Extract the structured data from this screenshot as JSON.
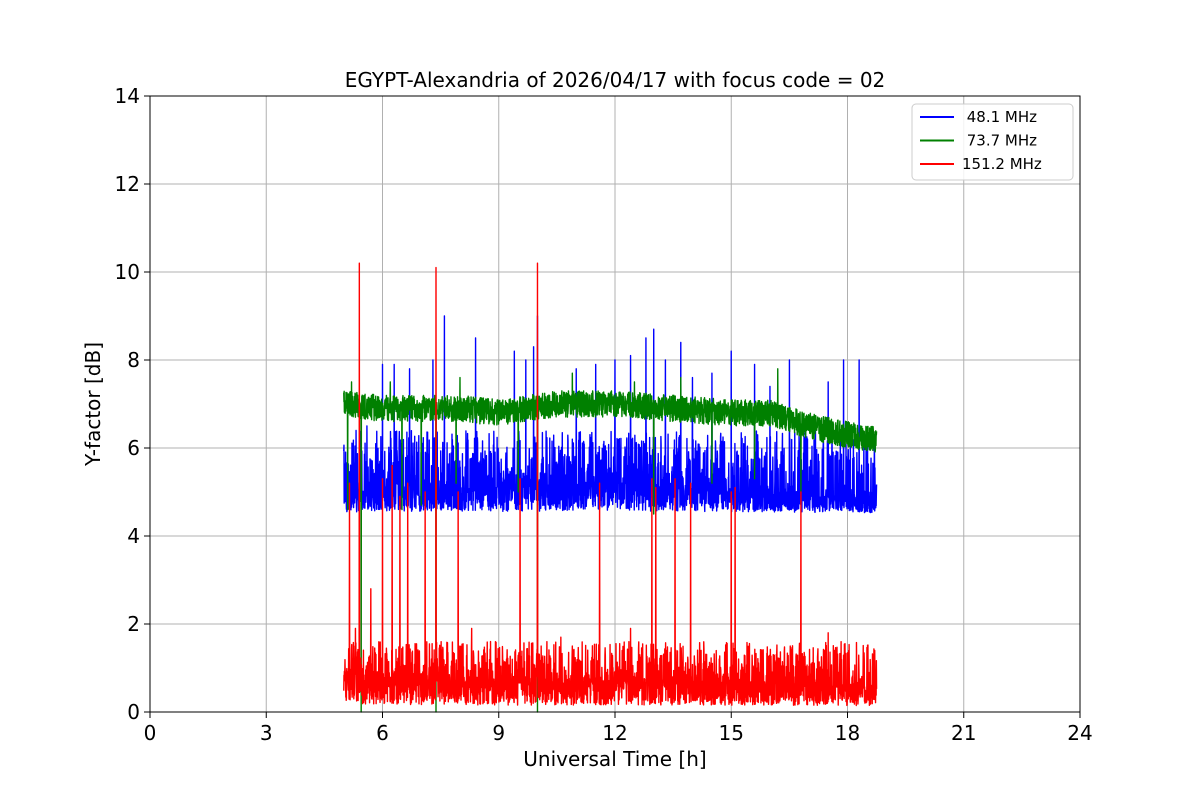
{
  "chart_data": {
    "type": "line",
    "title": "EGYPT-Alexandria of 2026/04/17 with focus code = 02",
    "xlabel": "Universal Time [h]",
    "ylabel": "Y-factor [dB]",
    "xlim": [
      0,
      24
    ],
    "ylim": [
      0,
      14
    ],
    "xticks": [
      0,
      3,
      6,
      9,
      12,
      15,
      18,
      21,
      24
    ],
    "yticks": [
      0,
      2,
      4,
      6,
      8,
      10,
      12,
      14
    ],
    "grid": true,
    "legend_position": "top-right",
    "data_range_hours": [
      5.0,
      18.75
    ],
    "series": [
      {
        "name": "48.1 MHz",
        "legend_label": " 48.1 MHz",
        "color": "#0000ff",
        "baseline": [
          [
            5.0,
            4.9
          ],
          [
            6.0,
            5.0
          ],
          [
            9.0,
            5.1
          ],
          [
            12.0,
            5.2
          ],
          [
            15.0,
            5.0
          ],
          [
            18.75,
            4.8
          ]
        ],
        "band_low": 4.5,
        "band_high": 6.4,
        "spikes": [
          [
            5.6,
            6.5
          ],
          [
            6.0,
            7.9
          ],
          [
            6.3,
            7.9
          ],
          [
            6.7,
            7.8
          ],
          [
            7.3,
            8.0
          ],
          [
            7.6,
            9.0
          ],
          [
            8.4,
            8.5
          ],
          [
            9.4,
            8.2
          ],
          [
            9.7,
            8.0
          ],
          [
            9.9,
            8.3
          ],
          [
            10.0,
            9.0
          ],
          [
            11.0,
            7.8
          ],
          [
            11.5,
            7.9
          ],
          [
            12.0,
            8.0
          ],
          [
            12.4,
            8.1
          ],
          [
            12.8,
            8.5
          ],
          [
            13.0,
            8.7
          ],
          [
            13.3,
            8.0
          ],
          [
            13.7,
            8.4
          ],
          [
            14.0,
            7.6
          ],
          [
            14.5,
            7.7
          ],
          [
            15.0,
            8.2
          ],
          [
            15.6,
            7.9
          ],
          [
            16.0,
            7.4
          ],
          [
            16.5,
            8.0
          ],
          [
            17.5,
            7.5
          ],
          [
            17.9,
            8.0
          ],
          [
            18.3,
            8.0
          ]
        ]
      },
      {
        "name": "73.7 MHz",
        "legend_label": " 73.7 MHz",
        "color": "#008000",
        "baseline": [
          [
            5.0,
            7.0
          ],
          [
            6.0,
            6.9
          ],
          [
            8.0,
            6.9
          ],
          [
            9.0,
            6.8
          ],
          [
            10.5,
            7.0
          ],
          [
            12.0,
            7.0
          ],
          [
            13.5,
            6.9
          ],
          [
            15.0,
            6.8
          ],
          [
            16.0,
            6.8
          ],
          [
            17.0,
            6.5
          ],
          [
            18.0,
            6.3
          ],
          [
            18.75,
            6.2
          ]
        ],
        "band_half_width": 0.3,
        "dips": [
          [
            5.1,
            4.6
          ],
          [
            5.45,
            0.0
          ],
          [
            6.2,
            4.8
          ],
          [
            6.5,
            4.6
          ],
          [
            7.0,
            4.7
          ],
          [
            7.38,
            0.0
          ],
          [
            7.9,
            5.2
          ],
          [
            9.5,
            5.0
          ],
          [
            10.0,
            0.0
          ],
          [
            13.0,
            4.5
          ],
          [
            14.5,
            5.2
          ],
          [
            15.6,
            5.3
          ],
          [
            16.8,
            5.0
          ]
        ],
        "peaks": [
          [
            5.2,
            7.5
          ],
          [
            6.2,
            7.5
          ],
          [
            8.0,
            7.6
          ],
          [
            10.9,
            7.7
          ],
          [
            12.5,
            7.5
          ],
          [
            13.7,
            7.6
          ],
          [
            16.2,
            7.8
          ]
        ]
      },
      {
        "name": "151.2 MHz",
        "legend_label": "151.2 MHz",
        "color": "#ff0000",
        "baseline": [
          [
            5.0,
            0.9
          ],
          [
            6.0,
            0.75
          ],
          [
            8.0,
            0.7
          ],
          [
            10.0,
            0.65
          ],
          [
            12.0,
            0.7
          ],
          [
            14.0,
            0.7
          ],
          [
            16.0,
            0.6
          ],
          [
            18.75,
            0.55
          ]
        ],
        "band_low": 0.1,
        "band_high": 1.6,
        "spikes": [
          [
            5.15,
            5.2
          ],
          [
            5.4,
            10.2
          ],
          [
            5.7,
            2.8
          ],
          [
            6.0,
            5.3
          ],
          [
            6.25,
            5.6
          ],
          [
            6.45,
            4.9
          ],
          [
            6.65,
            5.2
          ],
          [
            7.1,
            5.0
          ],
          [
            7.38,
            10.1
          ],
          [
            7.95,
            5.0
          ],
          [
            9.55,
            5.3
          ],
          [
            10.0,
            10.2
          ],
          [
            11.6,
            5.2
          ],
          [
            12.95,
            5.3
          ],
          [
            13.05,
            5.1
          ],
          [
            13.55,
            5.3
          ],
          [
            13.95,
            5.2
          ],
          [
            15.0,
            5.0
          ],
          [
            15.1,
            5.1
          ],
          [
            16.8,
            5.0
          ]
        ],
        "noise_peaks": [
          [
            5.3,
            1.9
          ],
          [
            8.3,
            1.9
          ],
          [
            10.6,
            1.7
          ],
          [
            12.4,
            1.9
          ],
          [
            17.5,
            1.8
          ]
        ]
      }
    ]
  }
}
